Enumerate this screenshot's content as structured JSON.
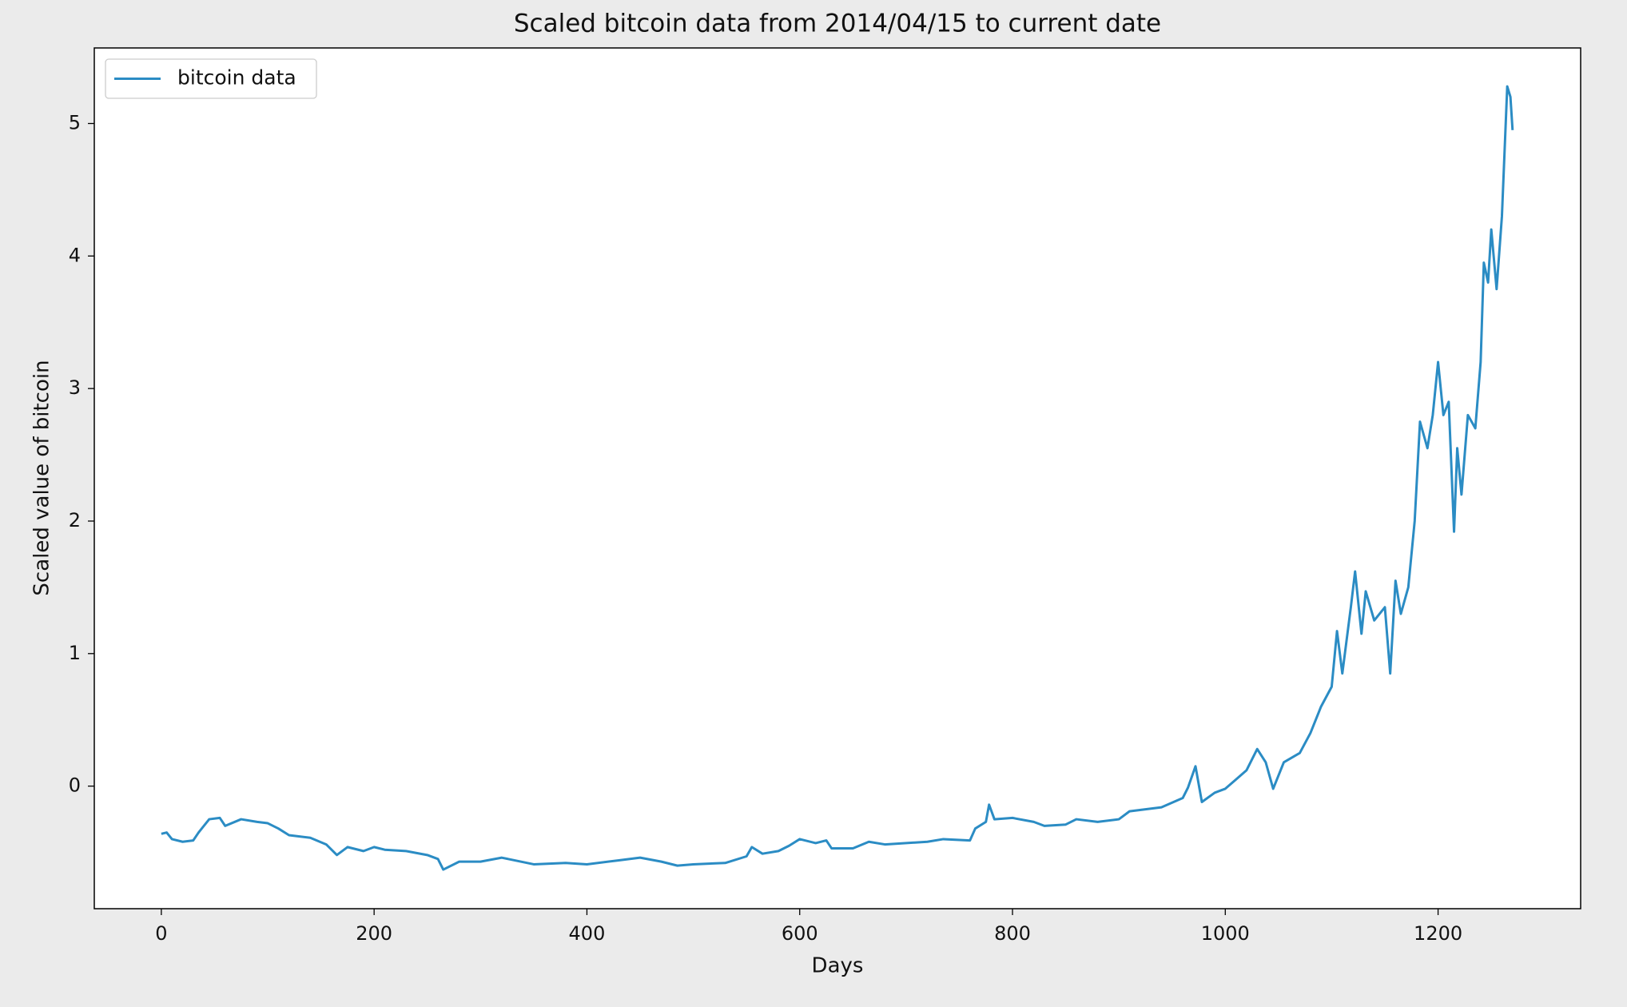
{
  "chart_data": {
    "type": "line",
    "title": "Scaled bitcoin data from 2014/04/15 to current date",
    "x_label": "Days",
    "y_label": "Scaled value of bitcoin",
    "x": [
      0,
      5,
      10,
      20,
      30,
      35,
      45,
      55,
      60,
      75,
      90,
      100,
      110,
      120,
      140,
      155,
      165,
      175,
      190,
      200,
      210,
      230,
      250,
      260,
      265,
      280,
      300,
      320,
      350,
      380,
      400,
      430,
      450,
      470,
      485,
      500,
      530,
      550,
      555,
      565,
      580,
      590,
      600,
      615,
      625,
      630,
      650,
      665,
      680,
      720,
      735,
      760,
      765,
      775,
      778,
      783,
      800,
      820,
      830,
      850,
      860,
      880,
      900,
      910,
      940,
      960,
      965,
      972,
      978,
      990,
      1000,
      1010,
      1020,
      1030,
      1038,
      1045,
      1055,
      1070,
      1080,
      1090,
      1100,
      1105,
      1110,
      1118,
      1122,
      1128,
      1132,
      1140,
      1150,
      1155,
      1160,
      1165,
      1172,
      1178,
      1183,
      1190,
      1195,
      1200,
      1205,
      1210,
      1215,
      1218,
      1222,
      1228,
      1235,
      1240,
      1243,
      1247,
      1250,
      1255,
      1260,
      1265,
      1268,
      1270
    ],
    "series": [
      {
        "name": "bitcoin data",
        "color": "#2b8cc4",
        "values": [
          -0.36,
          -0.35,
          -0.4,
          -0.42,
          -0.41,
          -0.35,
          -0.25,
          -0.24,
          -0.3,
          -0.25,
          -0.27,
          -0.28,
          -0.32,
          -0.37,
          -0.39,
          -0.44,
          -0.52,
          -0.46,
          -0.49,
          -0.46,
          -0.48,
          -0.49,
          -0.52,
          -0.55,
          -0.63,
          -0.57,
          -0.57,
          -0.54,
          -0.59,
          -0.58,
          -0.59,
          -0.56,
          -0.54,
          -0.57,
          -0.6,
          -0.59,
          -0.58,
          -0.53,
          -0.46,
          -0.51,
          -0.49,
          -0.45,
          -0.4,
          -0.43,
          -0.41,
          -0.47,
          -0.47,
          -0.42,
          -0.44,
          -0.42,
          -0.4,
          -0.41,
          -0.32,
          -0.27,
          -0.14,
          -0.25,
          -0.24,
          -0.27,
          -0.3,
          -0.29,
          -0.25,
          -0.27,
          -0.25,
          -0.19,
          -0.16,
          -0.09,
          -0.01,
          0.15,
          -0.12,
          -0.05,
          -0.02,
          0.05,
          0.12,
          0.28,
          0.18,
          -0.02,
          0.18,
          0.25,
          0.4,
          0.6,
          0.75,
          1.17,
          0.85,
          1.35,
          1.62,
          1.15,
          1.47,
          1.25,
          1.35,
          0.85,
          1.55,
          1.3,
          1.5,
          2.0,
          2.75,
          2.55,
          2.8,
          3.2,
          2.8,
          2.9,
          1.92,
          2.55,
          2.2,
          2.8,
          2.7,
          3.2,
          3.95,
          3.8,
          4.2,
          3.75,
          4.3,
          5.28,
          5.2,
          4.95
        ]
      }
    ],
    "xlim": [
      -63,
      1334
    ],
    "ylim": [
      -0.925,
      5.57
    ],
    "xticks": [
      0,
      200,
      400,
      600,
      800,
      1000,
      1200
    ],
    "yticks": [
      0,
      1,
      2,
      3,
      4,
      5
    ],
    "legend": "upper left",
    "grid": false
  }
}
